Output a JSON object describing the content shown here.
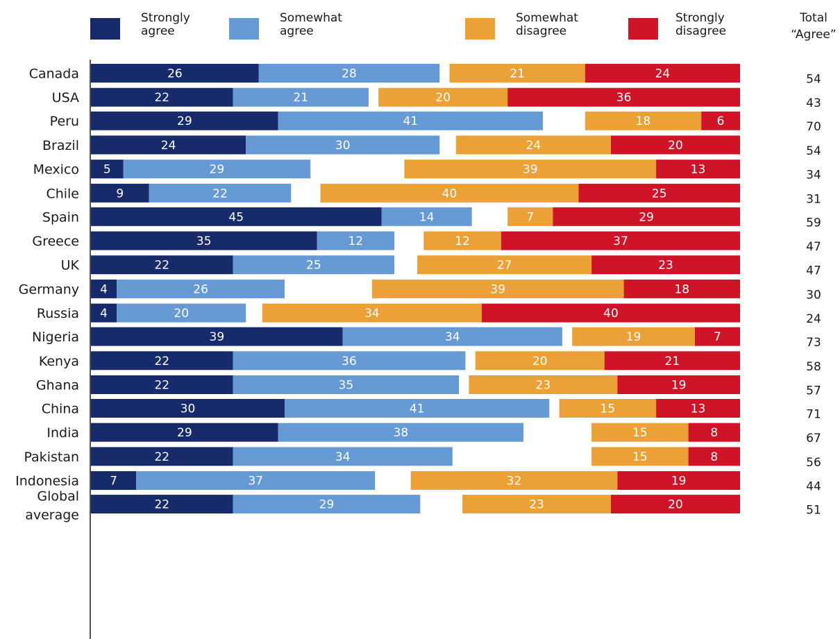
{
  "chart_data": {
    "type": "bar",
    "orientation": "horizontal",
    "layout": "diverging-stacked",
    "legend_position": "top",
    "grid": false,
    "xlim": [
      0,
      100
    ],
    "series": [
      {
        "name": "Strongly agree",
        "color": "#172b6b",
        "side": "agree"
      },
      {
        "name": "Somewhat agree",
        "color": "#659ad4",
        "side": "agree"
      },
      {
        "name": "Somewhat disagree",
        "color": "#eba135",
        "side": "disagree"
      },
      {
        "name": "Strongly disagree",
        "color": "#cf1428",
        "side": "disagree"
      }
    ],
    "legend": [
      {
        "line1": "Strongly",
        "line2": "agree"
      },
      {
        "line1": "Somewhat",
        "line2": "agree"
      },
      {
        "line1": "Somewhat",
        "line2": "disagree"
      },
      {
        "line1": "Strongly",
        "line2": "disagree"
      }
    ],
    "total_header": {
      "line1": "Total",
      "line2": "“Agree”"
    },
    "groups": [
      {
        "rows": [
          {
            "label": [
              "Canada"
            ],
            "values": [
              26,
              28,
              21,
              24
            ],
            "total": 54
          },
          {
            "label": [
              "USA"
            ],
            "values": [
              22,
              21,
              20,
              36
            ],
            "total": 43
          }
        ]
      },
      {
        "rows": [
          {
            "label": [
              "Peru"
            ],
            "values": [
              29,
              41,
              18,
              6
            ],
            "total": 70
          },
          {
            "label": [
              "Brazil"
            ],
            "values": [
              24,
              30,
              24,
              20
            ],
            "total": 54
          },
          {
            "label": [
              "Mexico"
            ],
            "values": [
              5,
              29,
              39,
              13
            ],
            "total": 34
          },
          {
            "label": [
              "Chile"
            ],
            "values": [
              9,
              22,
              40,
              25
            ],
            "total": 31
          }
        ]
      },
      {
        "rows": [
          {
            "label": [
              "Spain"
            ],
            "values": [
              45,
              14,
              7,
              29
            ],
            "total": 59
          },
          {
            "label": [
              "Greece"
            ],
            "values": [
              35,
              12,
              12,
              37
            ],
            "total": 47
          },
          {
            "label": [
              "UK"
            ],
            "values": [
              22,
              25,
              27,
              23
            ],
            "total": 47
          },
          {
            "label": [
              "Germany"
            ],
            "values": [
              4,
              26,
              39,
              18
            ],
            "total": 30
          },
          {
            "label": [
              "Russia"
            ],
            "values": [
              4,
              20,
              34,
              40
            ],
            "total": 24
          }
        ]
      },
      {
        "rows": [
          {
            "label": [
              "Nigeria"
            ],
            "values": [
              39,
              34,
              19,
              7
            ],
            "total": 73
          },
          {
            "label": [
              "Kenya"
            ],
            "values": [
              22,
              36,
              20,
              21
            ],
            "total": 58
          },
          {
            "label": [
              "Ghana"
            ],
            "values": [
              22,
              35,
              23,
              19
            ],
            "total": 57
          }
        ]
      },
      {
        "rows": [
          {
            "label": [
              "China"
            ],
            "values": [
              30,
              41,
              15,
              13
            ],
            "total": 71
          },
          {
            "label": [
              "India"
            ],
            "values": [
              29,
              38,
              15,
              8
            ],
            "total": 67
          },
          {
            "label": [
              "Pakistan"
            ],
            "values": [
              22,
              34,
              15,
              8
            ],
            "total": 56
          },
          {
            "label": [
              "Indonesia"
            ],
            "values": [
              7,
              37,
              32,
              19
            ],
            "total": 44
          }
        ]
      },
      {
        "rows": [
          {
            "label": [
              "Global",
              "average"
            ],
            "values": [
              22,
              29,
              23,
              20
            ],
            "total": 51
          }
        ]
      }
    ]
  }
}
